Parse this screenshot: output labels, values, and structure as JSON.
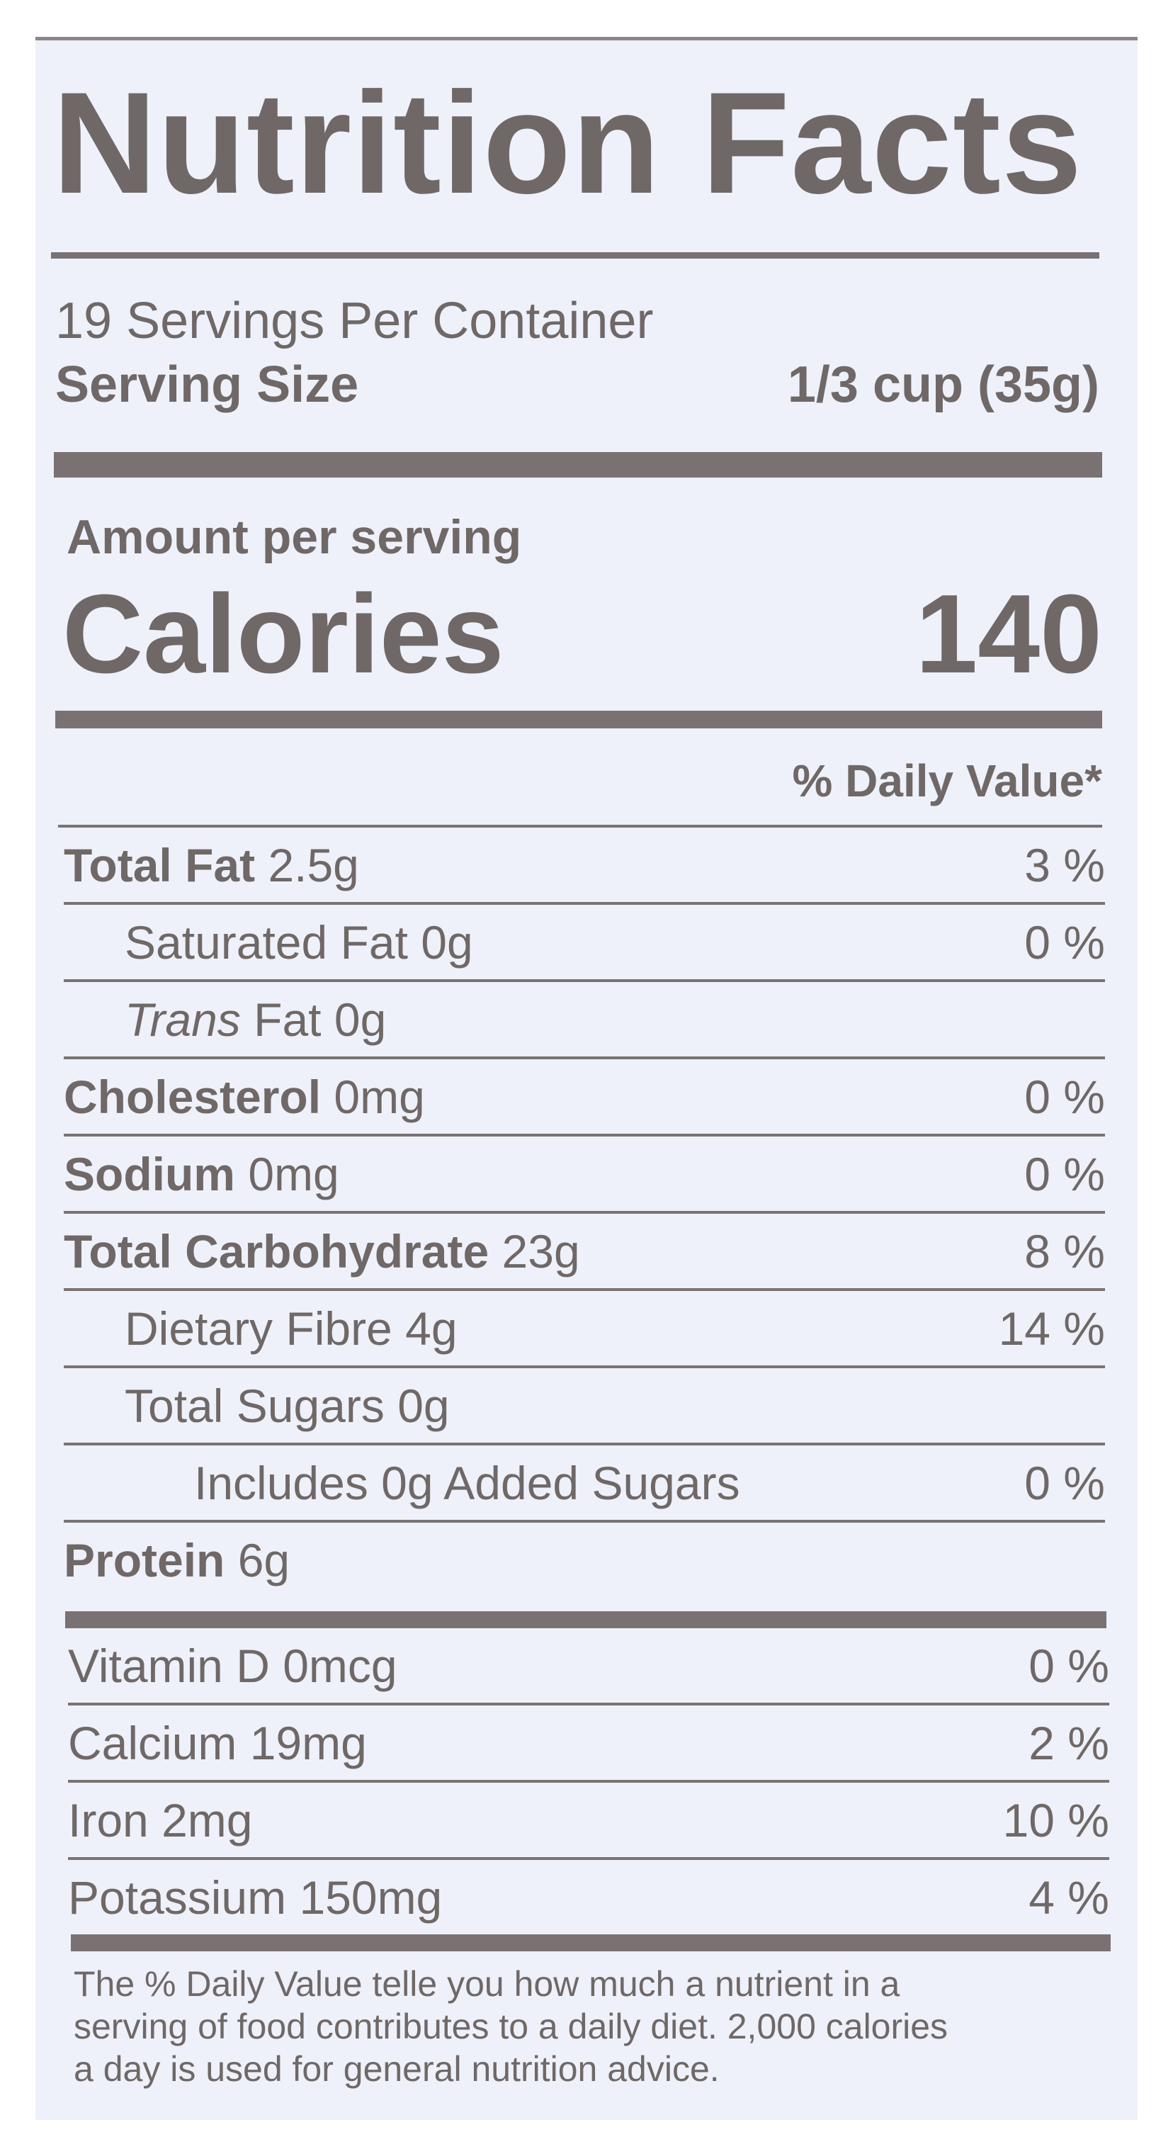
{
  "title": "Nutrition Facts",
  "servings_per_container": "19 Servings Per Container",
  "serving_size": {
    "label": "Serving Size",
    "value": "1/3 cup (35g)"
  },
  "amount_per_serving": "Amount per serving",
  "calories": {
    "label": "Calories",
    "value": "140"
  },
  "daily_value_header": "% Daily Value*",
  "nutrients": [
    {
      "name": "Total Fat",
      "amount": "2.5g",
      "dv": "3 %",
      "bold": true,
      "indent": 0
    },
    {
      "name": "Saturated Fat",
      "amount": "0g",
      "dv": "0 %",
      "bold": false,
      "indent": 1
    },
    {
      "name": "Trans",
      "name_suffix": "Fat",
      "amount": "0g",
      "dv": "",
      "bold": false,
      "indent": 1
    },
    {
      "name": "Cholesterol",
      "amount": "0mg",
      "dv": "0 %",
      "bold": true,
      "indent": 0
    },
    {
      "name": "Sodium",
      "amount": "0mg",
      "dv": "0 %",
      "bold": true,
      "indent": 0
    },
    {
      "name": "Total Carbohydrate",
      "amount": "23g",
      "dv": "8 %",
      "bold": true,
      "indent": 0
    },
    {
      "name": "Dietary Fibre",
      "amount": "4g",
      "dv": "14 %",
      "bold": false,
      "indent": 1
    },
    {
      "name": "Total Sugars",
      "amount": "0g",
      "dv": "",
      "bold": false,
      "indent": 1
    },
    {
      "name": "Includes 0g Added Sugars",
      "amount": "",
      "dv": "0 %",
      "bold": false,
      "indent": 2
    },
    {
      "name": "Protein",
      "amount": "6g",
      "dv": "",
      "bold": true,
      "indent": 0
    }
  ],
  "vitamins": [
    {
      "label": "Vitamin D 0mcg",
      "dv": "0 %"
    },
    {
      "label": "Calcium 19mg",
      "dv": "2 %"
    },
    {
      "label": "Iron 2mg",
      "dv": "10 %"
    },
    {
      "label": "Potassium 150mg",
      "dv": "4 %"
    }
  ],
  "footnote": [
    "The % Daily Value telle you how much a nutrient in a",
    "serving of food contributes to a daily diet. 2,000 calories",
    "a day is used for general nutrition advice."
  ],
  "colors": {
    "text": "#6f6867",
    "background": "#eef1f9",
    "rules": "#7a7272"
  }
}
